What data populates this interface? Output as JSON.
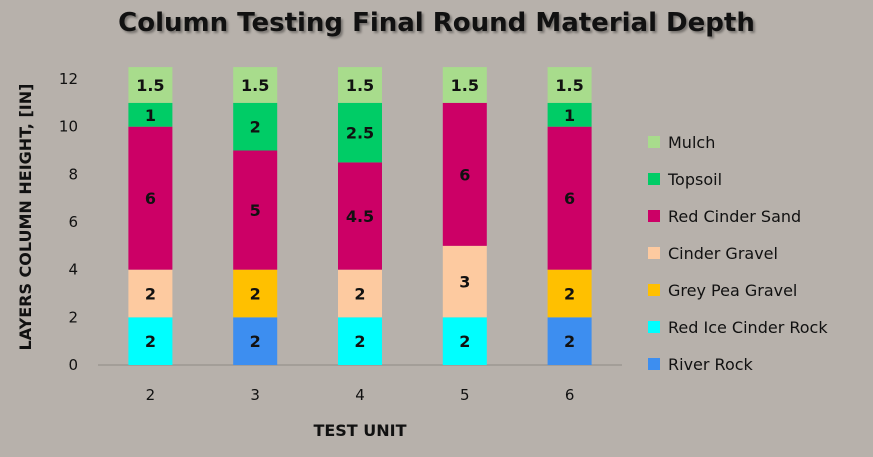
{
  "chart_data": {
    "type": "bar",
    "stacked": true,
    "title": "Column Testing Final Round Material Depth",
    "xlabel": "TEST UNIT",
    "ylabel": "LAYERS COLUMN HEIGHT, [IN]",
    "ylim": [
      0,
      12
    ],
    "yticks": [
      0,
      2,
      4,
      6,
      8,
      10,
      12
    ],
    "categories": [
      "2",
      "3",
      "4",
      "5",
      "6"
    ],
    "legend_position": "right",
    "series": [
      {
        "name": "River Rock",
        "color": "#3d8ef0",
        "values": [
          0,
          2,
          0,
          0,
          2
        ]
      },
      {
        "name": "Red Ice Cinder Rock",
        "color": "#00ffff",
        "values": [
          2,
          0,
          2,
          2,
          0
        ]
      },
      {
        "name": "Grey Pea Gravel",
        "color": "#ffc000",
        "values": [
          0,
          2,
          0,
          0,
          2
        ]
      },
      {
        "name": "Cinder Gravel",
        "color": "#fdcaa0",
        "values": [
          2,
          0,
          2,
          3,
          0
        ]
      },
      {
        "name": "Red Cinder Sand",
        "color": "#cc0066",
        "values": [
          6,
          5,
          4.5,
          6,
          6
        ]
      },
      {
        "name": "Topsoil",
        "color": "#00cc66",
        "values": [
          1,
          2,
          2.5,
          0,
          1
        ]
      },
      {
        "name": "Mulch",
        "color": "#a8dc8c",
        "values": [
          1.5,
          1.5,
          1.5,
          1.5,
          1.5
        ]
      }
    ]
  }
}
